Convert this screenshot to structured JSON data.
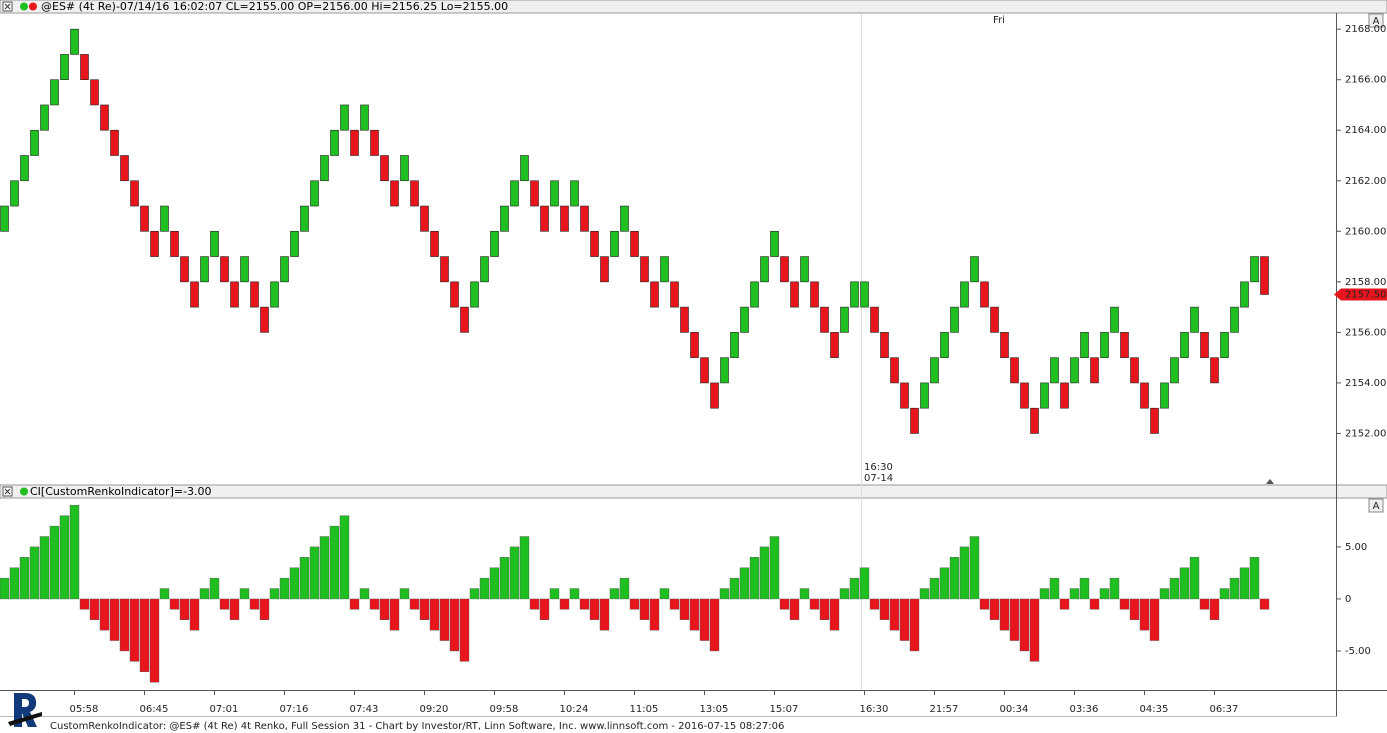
{
  "chart_data": [
    {
      "type": "renko",
      "title": "@ES# (4t Re)-07/14/16 16:02:07 CL=2155.00 OP=2156.00 Hi=2156.25 Lo=2155.00",
      "open": [
        2160,
        2161,
        2162,
        2163,
        2164,
        2165,
        2166,
        2167,
        2167,
        2166,
        2165,
        2164,
        2163,
        2162,
        2161,
        2160,
        2160,
        2160,
        2159,
        2158,
        2158,
        2159,
        2159,
        2158,
        2158,
        2158,
        2157,
        2157,
        2158,
        2159,
        2160,
        2161,
        2162,
        2163,
        2164,
        2164,
        2164,
        2164,
        2163,
        2162,
        2162,
        2162,
        2161,
        2160,
        2159,
        2158,
        2157,
        2157,
        2158,
        2159,
        2160,
        2161,
        2162,
        2162,
        2161,
        2161,
        2161,
        2161,
        2161,
        2160,
        2159,
        2159,
        2160,
        2160,
        2159,
        2158,
        2158,
        2158,
        2157,
        2156,
        2155,
        2154,
        2154,
        2155,
        2156,
        2157,
        2158,
        2159,
        2159,
        2158,
        2158,
        2158,
        2157,
        2156,
        2156,
        2157,
        2157,
        2157,
        2156,
        2155,
        2154,
        2153,
        2153,
        2154,
        2155,
        2156,
        2157,
        2158,
        2158,
        2157,
        2156,
        2155,
        2154,
        2153,
        2153,
        2154,
        2154,
        2154,
        2155,
        2155,
        2155,
        2156,
        2156,
        2155,
        2154,
        2153,
        2153,
        2154,
        2155,
        2156,
        2156,
        2155,
        2155,
        2156,
        2157,
        2158,
        2159
      ],
      "close": [
        2161,
        2162,
        2163,
        2164,
        2165,
        2166,
        2167,
        2168,
        2166,
        2165,
        2164,
        2163,
        2162,
        2161,
        2160,
        2159,
        2161,
        2159,
        2158,
        2157,
        2159,
        2160,
        2158,
        2157,
        2159,
        2157,
        2156,
        2158,
        2159,
        2160,
        2161,
        2162,
        2163,
        2164,
        2165,
        2163,
        2165,
        2163,
        2162,
        2161,
        2163,
        2161,
        2160,
        2159,
        2158,
        2157,
        2156,
        2158,
        2159,
        2160,
        2161,
        2162,
        2163,
        2161,
        2160,
        2162,
        2160,
        2162,
        2160,
        2159,
        2158,
        2160,
        2161,
        2159,
        2158,
        2157,
        2159,
        2157,
        2156,
        2155,
        2154,
        2153,
        2155,
        2156,
        2157,
        2158,
        2159,
        2160,
        2158,
        2157,
        2159,
        2157,
        2156,
        2155,
        2157,
        2158,
        2158,
        2156,
        2155,
        2154,
        2153,
        2152,
        2154,
        2155,
        2156,
        2157,
        2158,
        2159,
        2157,
        2156,
        2155,
        2154,
        2153,
        2152,
        2154,
        2155,
        2153,
        2155,
        2156,
        2154,
        2156,
        2157,
        2155,
        2154,
        2153,
        2152,
        2154,
        2155,
        2156,
        2157,
        2155,
        2154,
        2156,
        2157,
        2158,
        2159,
        2157.5
      ],
      "up_color": "#1fbf1f",
      "down_color": "#e8161c",
      "ylim": [
        2150,
        2168.6
      ],
      "yticks": [
        {
          "value": 2152,
          "label": "2152.00"
        },
        {
          "value": 2154,
          "label": "2154.00"
        },
        {
          "value": 2156,
          "label": "2156.00"
        },
        {
          "value": 2158,
          "label": "2158.00"
        },
        {
          "value": 2160,
          "label": "2160.00"
        },
        {
          "value": 2162,
          "label": "2162.00"
        },
        {
          "value": 2164,
          "label": "2164.00"
        },
        {
          "value": 2166,
          "label": "2166.00"
        },
        {
          "value": 2168,
          "label": "2168.00"
        }
      ],
      "last": {
        "value": 2157.5,
        "label": "2157.50"
      },
      "annotations": [
        "Fri",
        "16:30",
        "07-14"
      ]
    },
    {
      "type": "bar",
      "title": "CI[CustomRenkoIndicator]=-3.00",
      "categories": [
        null,
        null,
        null,
        null,
        null,
        null,
        null,
        "05:58",
        null,
        null,
        null,
        null,
        null,
        null,
        "06:45",
        null,
        null,
        null,
        null,
        null,
        null,
        "07:01",
        null,
        null,
        null,
        null,
        null,
        null,
        "07:16",
        null,
        null,
        null,
        null,
        null,
        null,
        "07:43",
        null,
        null,
        null,
        null,
        null,
        null,
        "09:20",
        null,
        null,
        null,
        null,
        null,
        null,
        "09:58",
        null,
        null,
        null,
        null,
        null,
        null,
        "10:24",
        null,
        null,
        null,
        null,
        null,
        null,
        "11:05",
        null,
        null,
        null,
        null,
        null,
        null,
        "13:05",
        null,
        null,
        null,
        null,
        null,
        null,
        "15:07",
        null,
        null,
        null,
        null,
        null,
        null,
        null,
        null,
        "16:30",
        null,
        null,
        null,
        null,
        null,
        null,
        "21:57",
        null,
        null,
        null,
        null,
        null,
        null,
        "00:34",
        null,
        null,
        null,
        null,
        null,
        null,
        "03:36",
        null,
        null,
        null,
        null,
        null,
        null,
        "04:35",
        null,
        null,
        null,
        null,
        null,
        null,
        "06:37",
        null,
        null,
        null,
        null,
        null
      ],
      "values": [
        2,
        3,
        4,
        5,
        6,
        7,
        8,
        9,
        -1,
        -2,
        -3,
        -4,
        -5,
        -6,
        -7,
        -8,
        1,
        -1,
        -2,
        -3,
        1,
        2,
        -1,
        -2,
        1,
        -1,
        -2,
        1,
        2,
        3,
        4,
        5,
        6,
        7,
        8,
        -1,
        1,
        -1,
        -2,
        -3,
        1,
        -1,
        -2,
        -3,
        -4,
        -5,
        -6,
        1,
        2,
        3,
        4,
        5,
        6,
        -1,
        -2,
        1,
        -1,
        1,
        -1,
        -2,
        -3,
        1,
        2,
        -1,
        -2,
        -3,
        1,
        -1,
        -2,
        -3,
        -4,
        -5,
        1,
        2,
        3,
        4,
        5,
        6,
        -1,
        -2,
        1,
        -1,
        -2,
        -3,
        1,
        2,
        3,
        -1,
        -2,
        -3,
        -4,
        -5,
        1,
        2,
        3,
        4,
        5,
        6,
        -1,
        -2,
        -3,
        -4,
        -5,
        -6,
        1,
        2,
        -1,
        1,
        2,
        -1,
        1,
        2,
        -1,
        -2,
        -3,
        -4,
        1,
        2,
        3,
        4,
        -1,
        -2,
        1,
        2,
        3,
        4,
        -1
      ],
      "up_color": "#1fbf1f",
      "down_color": "#e8161c",
      "ylim": [
        -8.75,
        9.7
      ],
      "yticks": [
        {
          "value": -5,
          "label": "-5.00"
        },
        0,
        {
          "value": 5,
          "label": "5.00"
        }
      ]
    }
  ],
  "ui": {
    "scale_buttons": [
      "A",
      "A"
    ]
  },
  "footer": "CustomRenkoIndicator: @ES# (4t Re) 4t Renko, Full Session 31 - Chart by Investor/RT, Linn Software, Inc. www.linnsoft.com - 2016-07-15 08:27:06"
}
